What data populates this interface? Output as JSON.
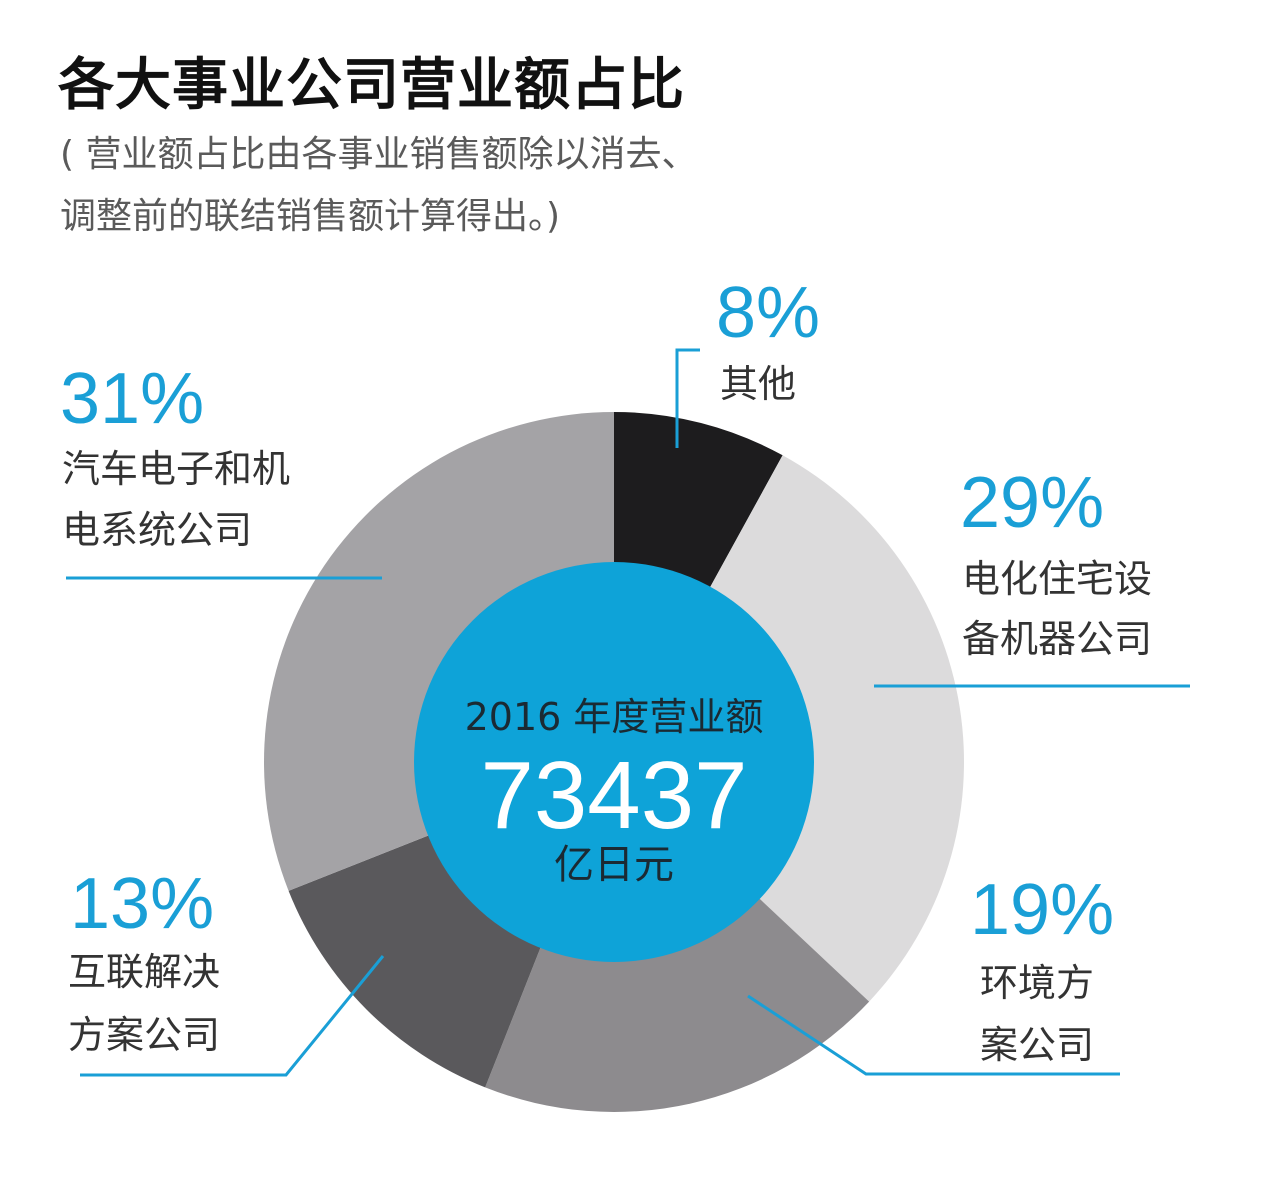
{
  "header": {
    "title": "各大事业公司营业额占比",
    "subtitle_line1": "( 营业额占比由各事业销售额除以消去、",
    "subtitle_line2": "调整前的联结销售额计算得出。)"
  },
  "center": {
    "line1": "2016 年度营业额",
    "value": "73437",
    "unit": "亿日元"
  },
  "colors": {
    "accent": "#1a9fd6",
    "center_fill": "#0ea3d8"
  },
  "chart_data": {
    "type": "pie",
    "title": "各大事业公司营业额占比",
    "total": 73437,
    "total_unit": "亿日元",
    "slices": [
      {
        "name": "其他",
        "label_lines": [
          "其他"
        ],
        "pct_label": "8%",
        "value": 8,
        "color": "#1d1c1e"
      },
      {
        "name": "电化住宅设备机器公司",
        "label_lines": [
          "电化住宅设",
          "备机器公司"
        ],
        "pct_label": "29%",
        "value": 29,
        "color": "#dcdbdc"
      },
      {
        "name": "环境方案公司",
        "label_lines": [
          "环境方",
          "案公司"
        ],
        "pct_label": "19%",
        "value": 19,
        "color": "#8d8b8e"
      },
      {
        "name": "互联解决方案公司",
        "label_lines": [
          "互联解决",
          "方案公司"
        ],
        "pct_label": "13%",
        "value": 13,
        "color": "#5a595c"
      },
      {
        "name": "汽车电子和机电系统公司",
        "label_lines": [
          "汽车电子和机",
          "电系统公司"
        ],
        "pct_label": "31%",
        "value": 31,
        "color": "#a4a3a6"
      }
    ]
  }
}
